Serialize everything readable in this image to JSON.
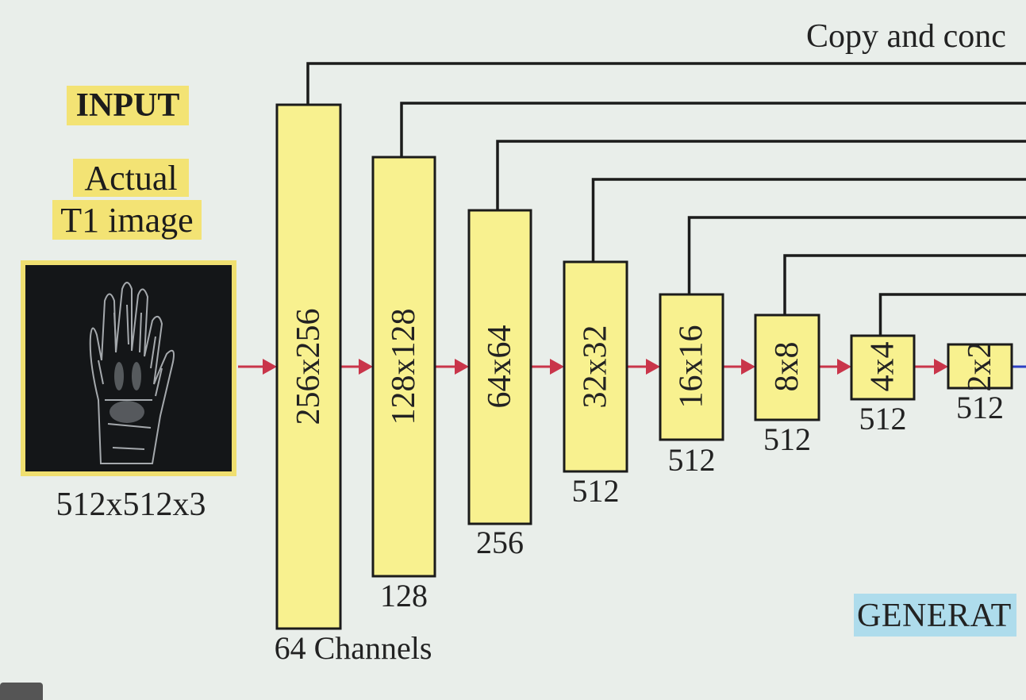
{
  "input": {
    "title": "INPUT",
    "subtitle_line1": "Actual",
    "subtitle_line2": "T1 image",
    "image_icon": "hand-xray-image",
    "size": "512x512x3"
  },
  "copy_label": "Copy and conc",
  "generator_label": "GENERAT",
  "encoder_blocks": [
    {
      "label": "256x256",
      "channels": "64 Channels"
    },
    {
      "label": "128x128",
      "channels": "128"
    },
    {
      "label": "64x64",
      "channels": "256"
    },
    {
      "label": "32x32",
      "channels": "512"
    },
    {
      "label": "16x16",
      "channels": "512"
    },
    {
      "label": "8x8",
      "channels": "512"
    },
    {
      "label": "4x4",
      "channels": "512"
    },
    {
      "label": "2x2",
      "channels": "512"
    }
  ],
  "colors": {
    "block_fill": "#f8f18f",
    "arrow": "#c9354a",
    "highlight_yellow": "#f3e374",
    "highlight_blue": "#aedcec"
  }
}
